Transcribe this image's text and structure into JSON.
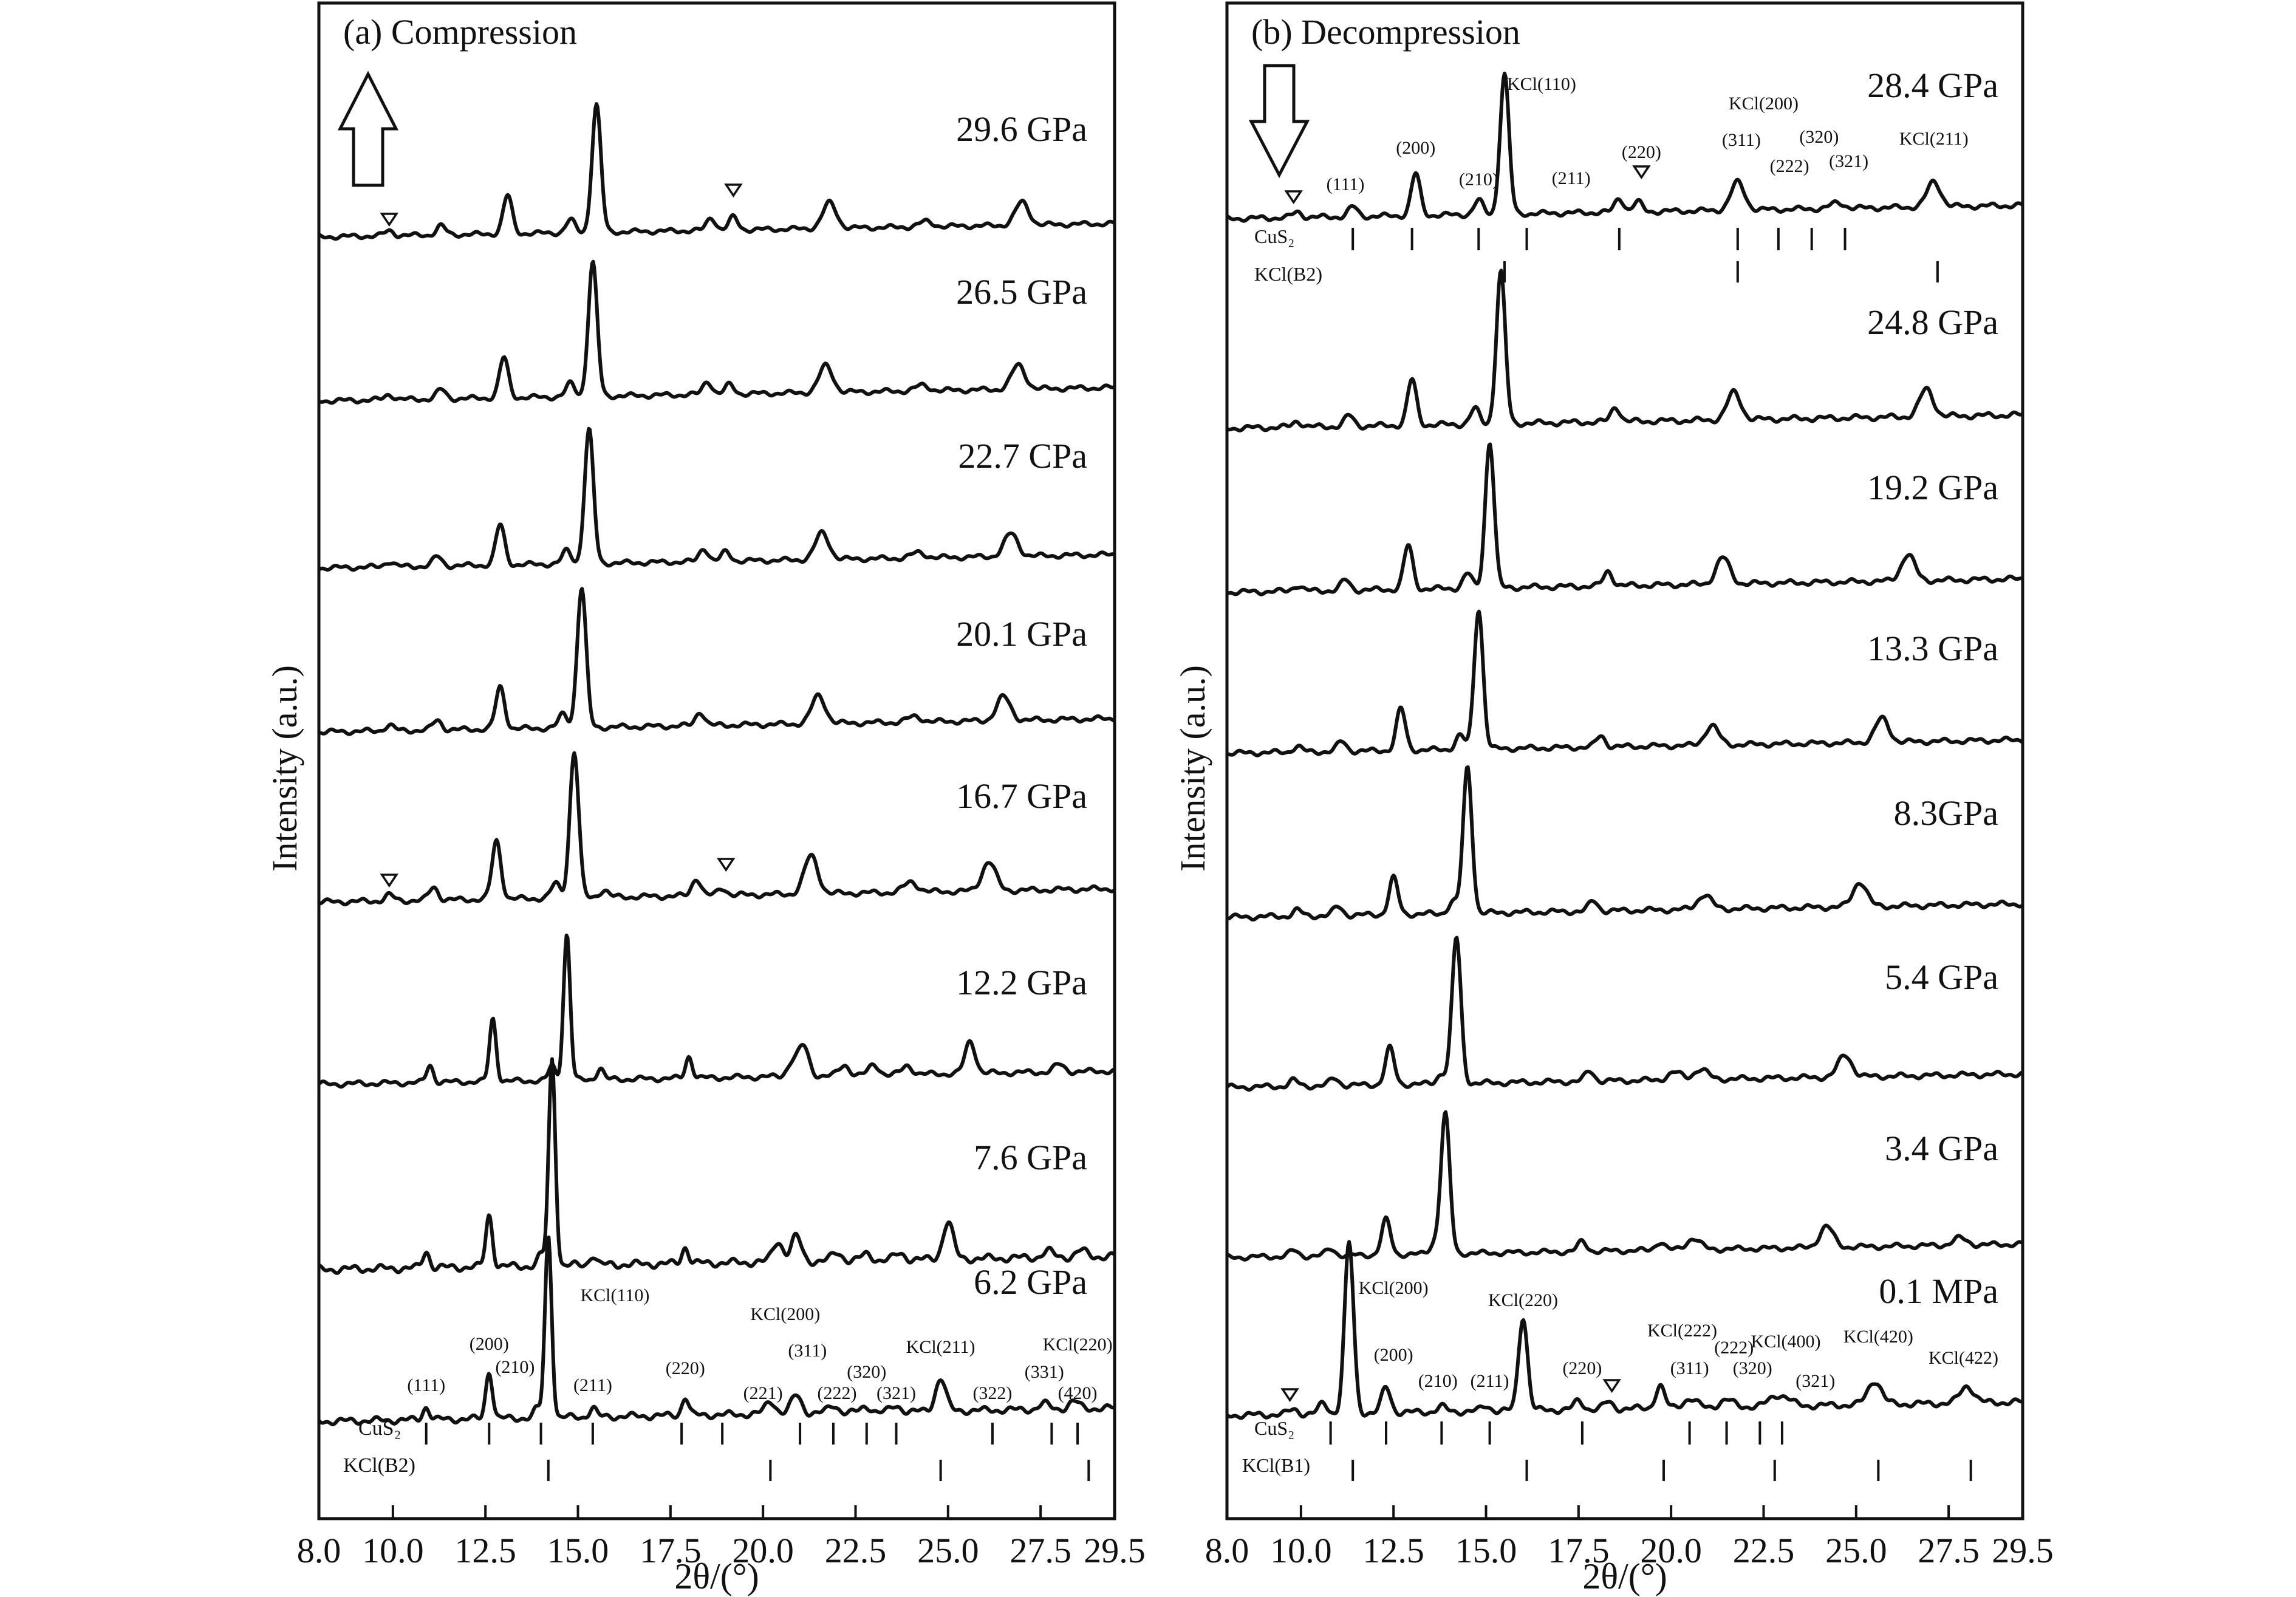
{
  "chart_data": [
    {
      "type": "line",
      "title": "(a) Compression",
      "xlabel": "2θ/(°)",
      "ylabel": "Intensity (a.u.)",
      "xlim": [
        8.0,
        29.5
      ],
      "x_ticks": [
        "8.0",
        "10.0",
        "12.5",
        "15.0",
        "17.5",
        "20.0",
        "22.5",
        "25.0",
        "27.5",
        "29.5"
      ],
      "x_tick_values": [
        8.0,
        10.0,
        12.5,
        15.0,
        17.5,
        20.0,
        22.5,
        25.0,
        27.5,
        29.5
      ],
      "arrow_direction": "up",
      "series": [
        {
          "name": "29.6 GPa",
          "peaks": [
            [
              9.9,
              0.04
            ],
            [
              11.3,
              0.07
            ],
            [
              13.1,
              0.3
            ],
            [
              14.8,
              0.1
            ],
            [
              15.5,
              1.0
            ],
            [
              18.6,
              0.1
            ],
            [
              19.2,
              0.1
            ],
            [
              21.8,
              0.2
            ],
            [
              24.4,
              0.04
            ],
            [
              27.0,
              0.18
            ]
          ]
        },
        {
          "name": "26.5 GPa",
          "peaks": [
            [
              9.9,
              0.04
            ],
            [
              11.3,
              0.07
            ],
            [
              13.0,
              0.3
            ],
            [
              14.8,
              0.1
            ],
            [
              15.4,
              1.0
            ],
            [
              18.5,
              0.1
            ],
            [
              19.1,
              0.07
            ],
            [
              21.7,
              0.2
            ],
            [
              24.3,
              0.04
            ],
            [
              26.9,
              0.18
            ]
          ]
        },
        {
          "name": "22.7 CPa",
          "peaks": [
            [
              9.9,
              0.04
            ],
            [
              11.2,
              0.07
            ],
            [
              12.9,
              0.3
            ],
            [
              14.7,
              0.1
            ],
            [
              15.3,
              1.0
            ],
            [
              18.4,
              0.1
            ],
            [
              19.0,
              0.07
            ],
            [
              21.6,
              0.2
            ],
            [
              24.2,
              0.04
            ],
            [
              26.7,
              0.17
            ]
          ]
        },
        {
          "name": "20.1 GPa",
          "peaks": [
            [
              9.9,
              0.04
            ],
            [
              11.2,
              0.07
            ],
            [
              12.9,
              0.3
            ],
            [
              14.6,
              0.1
            ],
            [
              15.1,
              1.0
            ],
            [
              18.3,
              0.1
            ],
            [
              21.5,
              0.2
            ],
            [
              24.1,
              0.04
            ],
            [
              26.5,
              0.17
            ]
          ]
        },
        {
          "name": "16.7 GPa",
          "peaks": [
            [
              9.9,
              0.04
            ],
            [
              11.1,
              0.09
            ],
            [
              12.8,
              0.4
            ],
            [
              14.4,
              0.1
            ],
            [
              14.9,
              1.0
            ],
            [
              15.7,
              0.05
            ],
            [
              18.2,
              0.12
            ],
            [
              18.9,
              0.05
            ],
            [
              21.3,
              0.26
            ],
            [
              24.0,
              0.07
            ],
            [
              26.1,
              0.2
            ]
          ]
        },
        {
          "name": "12.2 GPa",
          "peaks": [
            [
              11.0,
              0.12
            ],
            [
              12.7,
              0.43
            ],
            [
              14.3,
              0.1
            ],
            [
              14.7,
              1.0
            ],
            [
              15.6,
              0.08
            ],
            [
              18.0,
              0.15
            ],
            [
              20.8,
              0.1
            ],
            [
              21.1,
              0.2
            ],
            [
              22.2,
              0.07
            ],
            [
              23.0,
              0.07
            ],
            [
              23.9,
              0.06
            ],
            [
              25.6,
              0.22
            ],
            [
              28.0,
              0.05
            ]
          ]
        },
        {
          "name": "7.6 GPa",
          "peaks": [
            [
              10.9,
              0.08
            ],
            [
              12.6,
              0.25
            ],
            [
              14.0,
              0.05
            ],
            [
              14.3,
              1.0
            ],
            [
              15.4,
              0.05
            ],
            [
              17.9,
              0.08
            ],
            [
              20.4,
              0.1
            ],
            [
              20.9,
              0.12
            ],
            [
              22.0,
              0.04
            ],
            [
              22.8,
              0.03
            ],
            [
              23.7,
              0.03
            ],
            [
              25.0,
              0.18
            ],
            [
              27.7,
              0.03
            ],
            [
              28.6,
              0.03
            ]
          ]
        },
        {
          "name": "6.2 GPa",
          "peaks": [
            [
              10.9,
              0.07
            ],
            [
              12.6,
              0.26
            ],
            [
              13.9,
              0.05
            ],
            [
              14.2,
              1.0
            ],
            [
              15.4,
              0.05
            ],
            [
              17.9,
              0.1
            ],
            [
              20.2,
              0.07
            ],
            [
              20.9,
              0.1
            ],
            [
              21.9,
              0.04
            ],
            [
              22.8,
              0.03
            ],
            [
              23.6,
              0.03
            ],
            [
              24.8,
              0.18
            ],
            [
              27.6,
              0.03
            ],
            [
              28.4,
              0.04
            ]
          ]
        }
      ],
      "annotations": [
        "(111)",
        "(200)",
        "(210)",
        "KCl(110)",
        "(211)",
        "(220)",
        "(221)",
        "KCl(200)",
        "(311)",
        "(222)",
        "(320)",
        "(321)",
        "KCl(211)",
        "(322)",
        "(331)",
        "KCl(220)",
        "(420)"
      ],
      "reference_rows": [
        {
          "name": "CuS₂",
          "positions": [
            10.9,
            12.6,
            14.0,
            15.4,
            17.8,
            18.9,
            21.0,
            21.9,
            22.8,
            23.6,
            26.2,
            27.8,
            28.5
          ]
        },
        {
          "name": "KCl(B2)",
          "positions": [
            14.2,
            20.2,
            24.8,
            28.8
          ]
        }
      ]
    },
    {
      "type": "line",
      "title": "(b) Decompression",
      "xlabel": "2θ/(°)",
      "ylabel": "Intensity (a.u.)",
      "xlim": [
        8.0,
        29.5
      ],
      "x_ticks": [
        "8.0",
        "10.0",
        "12.5",
        "15.0",
        "17.5",
        "20.0",
        "22.5",
        "25.0",
        "27.5",
        "29.5"
      ],
      "x_tick_values": [
        8.0,
        10.0,
        12.5,
        15.0,
        17.5,
        20.0,
        22.5,
        25.0,
        27.5,
        29.5
      ],
      "arrow_direction": "down",
      "series": [
        {
          "name": "28.4 GPa",
          "peaks": [
            [
              9.9,
              0.04
            ],
            [
              11.4,
              0.07
            ],
            [
              13.1,
              0.3
            ],
            [
              14.8,
              0.1
            ],
            [
              15.5,
              1.0
            ],
            [
              18.6,
              0.1
            ],
            [
              19.1,
              0.07
            ],
            [
              21.8,
              0.2
            ],
            [
              24.5,
              0.04
            ],
            [
              27.1,
              0.18
            ]
          ]
        },
        {
          "name": "24.8 GPa",
          "peaks": [
            [
              9.9,
              0.04
            ],
            [
              11.3,
              0.07
            ],
            [
              13.0,
              0.3
            ],
            [
              14.7,
              0.1
            ],
            [
              15.4,
              1.0
            ],
            [
              18.5,
              0.1
            ],
            [
              21.7,
              0.18
            ],
            [
              26.9,
              0.18
            ]
          ]
        },
        {
          "name": "19.2 GPa",
          "peaks": [
            [
              9.9,
              0.04
            ],
            [
              11.2,
              0.07
            ],
            [
              12.9,
              0.3
            ],
            [
              14.5,
              0.1
            ],
            [
              15.1,
              1.0
            ],
            [
              18.3,
              0.1
            ],
            [
              21.4,
              0.18
            ],
            [
              26.4,
              0.18
            ]
          ]
        },
        {
          "name": "13.3 GPa",
          "peaks": [
            [
              9.9,
              0.04
            ],
            [
              11.1,
              0.07
            ],
            [
              12.7,
              0.3
            ],
            [
              14.3,
              0.1
            ],
            [
              14.8,
              1.0
            ],
            [
              18.1,
              0.08
            ],
            [
              21.1,
              0.14
            ],
            [
              25.7,
              0.17
            ]
          ]
        },
        {
          "name": "8.3GPa",
          "peaks": [
            [
              9.9,
              0.04
            ],
            [
              11.0,
              0.06
            ],
            [
              12.5,
              0.25
            ],
            [
              14.1,
              0.08
            ],
            [
              14.5,
              1.0
            ],
            [
              17.9,
              0.07
            ],
            [
              20.9,
              0.1
            ],
            [
              25.1,
              0.17
            ]
          ]
        },
        {
          "name": "5.4 GPa",
          "peaks": [
            [
              9.8,
              0.04
            ],
            [
              10.9,
              0.05
            ],
            [
              12.4,
              0.25
            ],
            [
              13.8,
              0.07
            ],
            [
              14.2,
              1.0
            ],
            [
              17.8,
              0.07
            ],
            [
              20.1,
              0.05
            ],
            [
              20.8,
              0.07
            ],
            [
              24.7,
              0.15
            ]
          ]
        },
        {
          "name": "3.4 GPa",
          "peaks": [
            [
              9.8,
              0.04
            ],
            [
              10.8,
              0.05
            ],
            [
              12.3,
              0.25
            ],
            [
              13.6,
              0.07
            ],
            [
              13.9,
              1.0
            ],
            [
              17.6,
              0.07
            ],
            [
              19.7,
              0.06
            ],
            [
              20.6,
              0.08
            ],
            [
              24.2,
              0.15
            ],
            [
              27.8,
              0.05
            ]
          ]
        },
        {
          "name": "0.1 MPa",
          "peaks": [
            [
              9.8,
              0.03
            ],
            [
              10.6,
              0.06
            ],
            [
              11.3,
              1.0
            ],
            [
              12.3,
              0.15
            ],
            [
              13.8,
              0.03
            ],
            [
              15.0,
              0.03
            ],
            [
              16.0,
              0.55
            ],
            [
              17.5,
              0.05
            ],
            [
              18.3,
              0.04
            ],
            [
              19.7,
              0.13
            ],
            [
              20.5,
              0.05
            ],
            [
              21.5,
              0.04
            ],
            [
              22.8,
              0.05
            ],
            [
              23.1,
              0.04
            ],
            [
              25.5,
              0.14
            ],
            [
              28.0,
              0.1
            ]
          ]
        }
      ],
      "annotations": [
        "(111)",
        "(200)",
        "(210)",
        "KCl(110)",
        "(211)",
        "(220)",
        "KCl(200)",
        "(311)",
        "(222)",
        "(320)",
        "(321)",
        "KCl(211)",
        "KCl(200)",
        "(200)",
        "(210)",
        "(211)",
        "KCl(220)",
        "(220)",
        "KCl(222)",
        "(311)",
        "(222)",
        "(320)",
        "KCl(400)",
        "(321)",
        "KCl(420)",
        "KCl(422)"
      ],
      "reference_rows": [
        {
          "name": "CuS₂",
          "positions": [
            11.4,
            13.0,
            14.8,
            16.1,
            18.6,
            21.8,
            22.9,
            23.8,
            24.7
          ]
        },
        {
          "name": "KCl(B2)",
          "positions": [
            15.5,
            21.8,
            27.2
          ]
        },
        {
          "name": "CuS₂",
          "positions": [
            10.8,
            12.3,
            13.8,
            15.1,
            17.6,
            20.5,
            21.5,
            22.4,
            23.0
          ]
        },
        {
          "name": "KCl(B1)",
          "positions": [
            11.4,
            16.1,
            19.8,
            22.8,
            25.6,
            28.1
          ]
        }
      ]
    }
  ],
  "panel_a": {
    "title": "(a) Compression",
    "ylabel": "Intensity (a.u.)",
    "xlabel": "2θ/(°)",
    "pressures": [
      "29.6 GPa",
      "26.5 GPa",
      "22.7 CPa",
      "20.1 GPa",
      "16.7 GPa",
      "12.2 GPa",
      "7.6 GPa",
      "6.2 GPa"
    ],
    "ref_labels": [
      "CuS₂",
      "KCl(B2)"
    ]
  },
  "panel_b": {
    "title": "(b) Decompression",
    "ylabel": "Intensity (a.u.)",
    "xlabel": "2θ/(°)",
    "pressures": [
      "28.4 GPa",
      "24.8 GPa",
      "19.2 GPa",
      "13.3 GPa",
      "8.3GPa",
      "5.4 GPa",
      "3.4 GPa",
      "0.1 MPa"
    ],
    "ref_labels_top": [
      "CuS₂",
      "KCl(B2)"
    ],
    "ref_labels_bottom": [
      "CuS₂",
      "KCl(B1)"
    ]
  },
  "colors": {
    "line": "#111111",
    "frame": "#111111",
    "background": "#ffffff"
  }
}
